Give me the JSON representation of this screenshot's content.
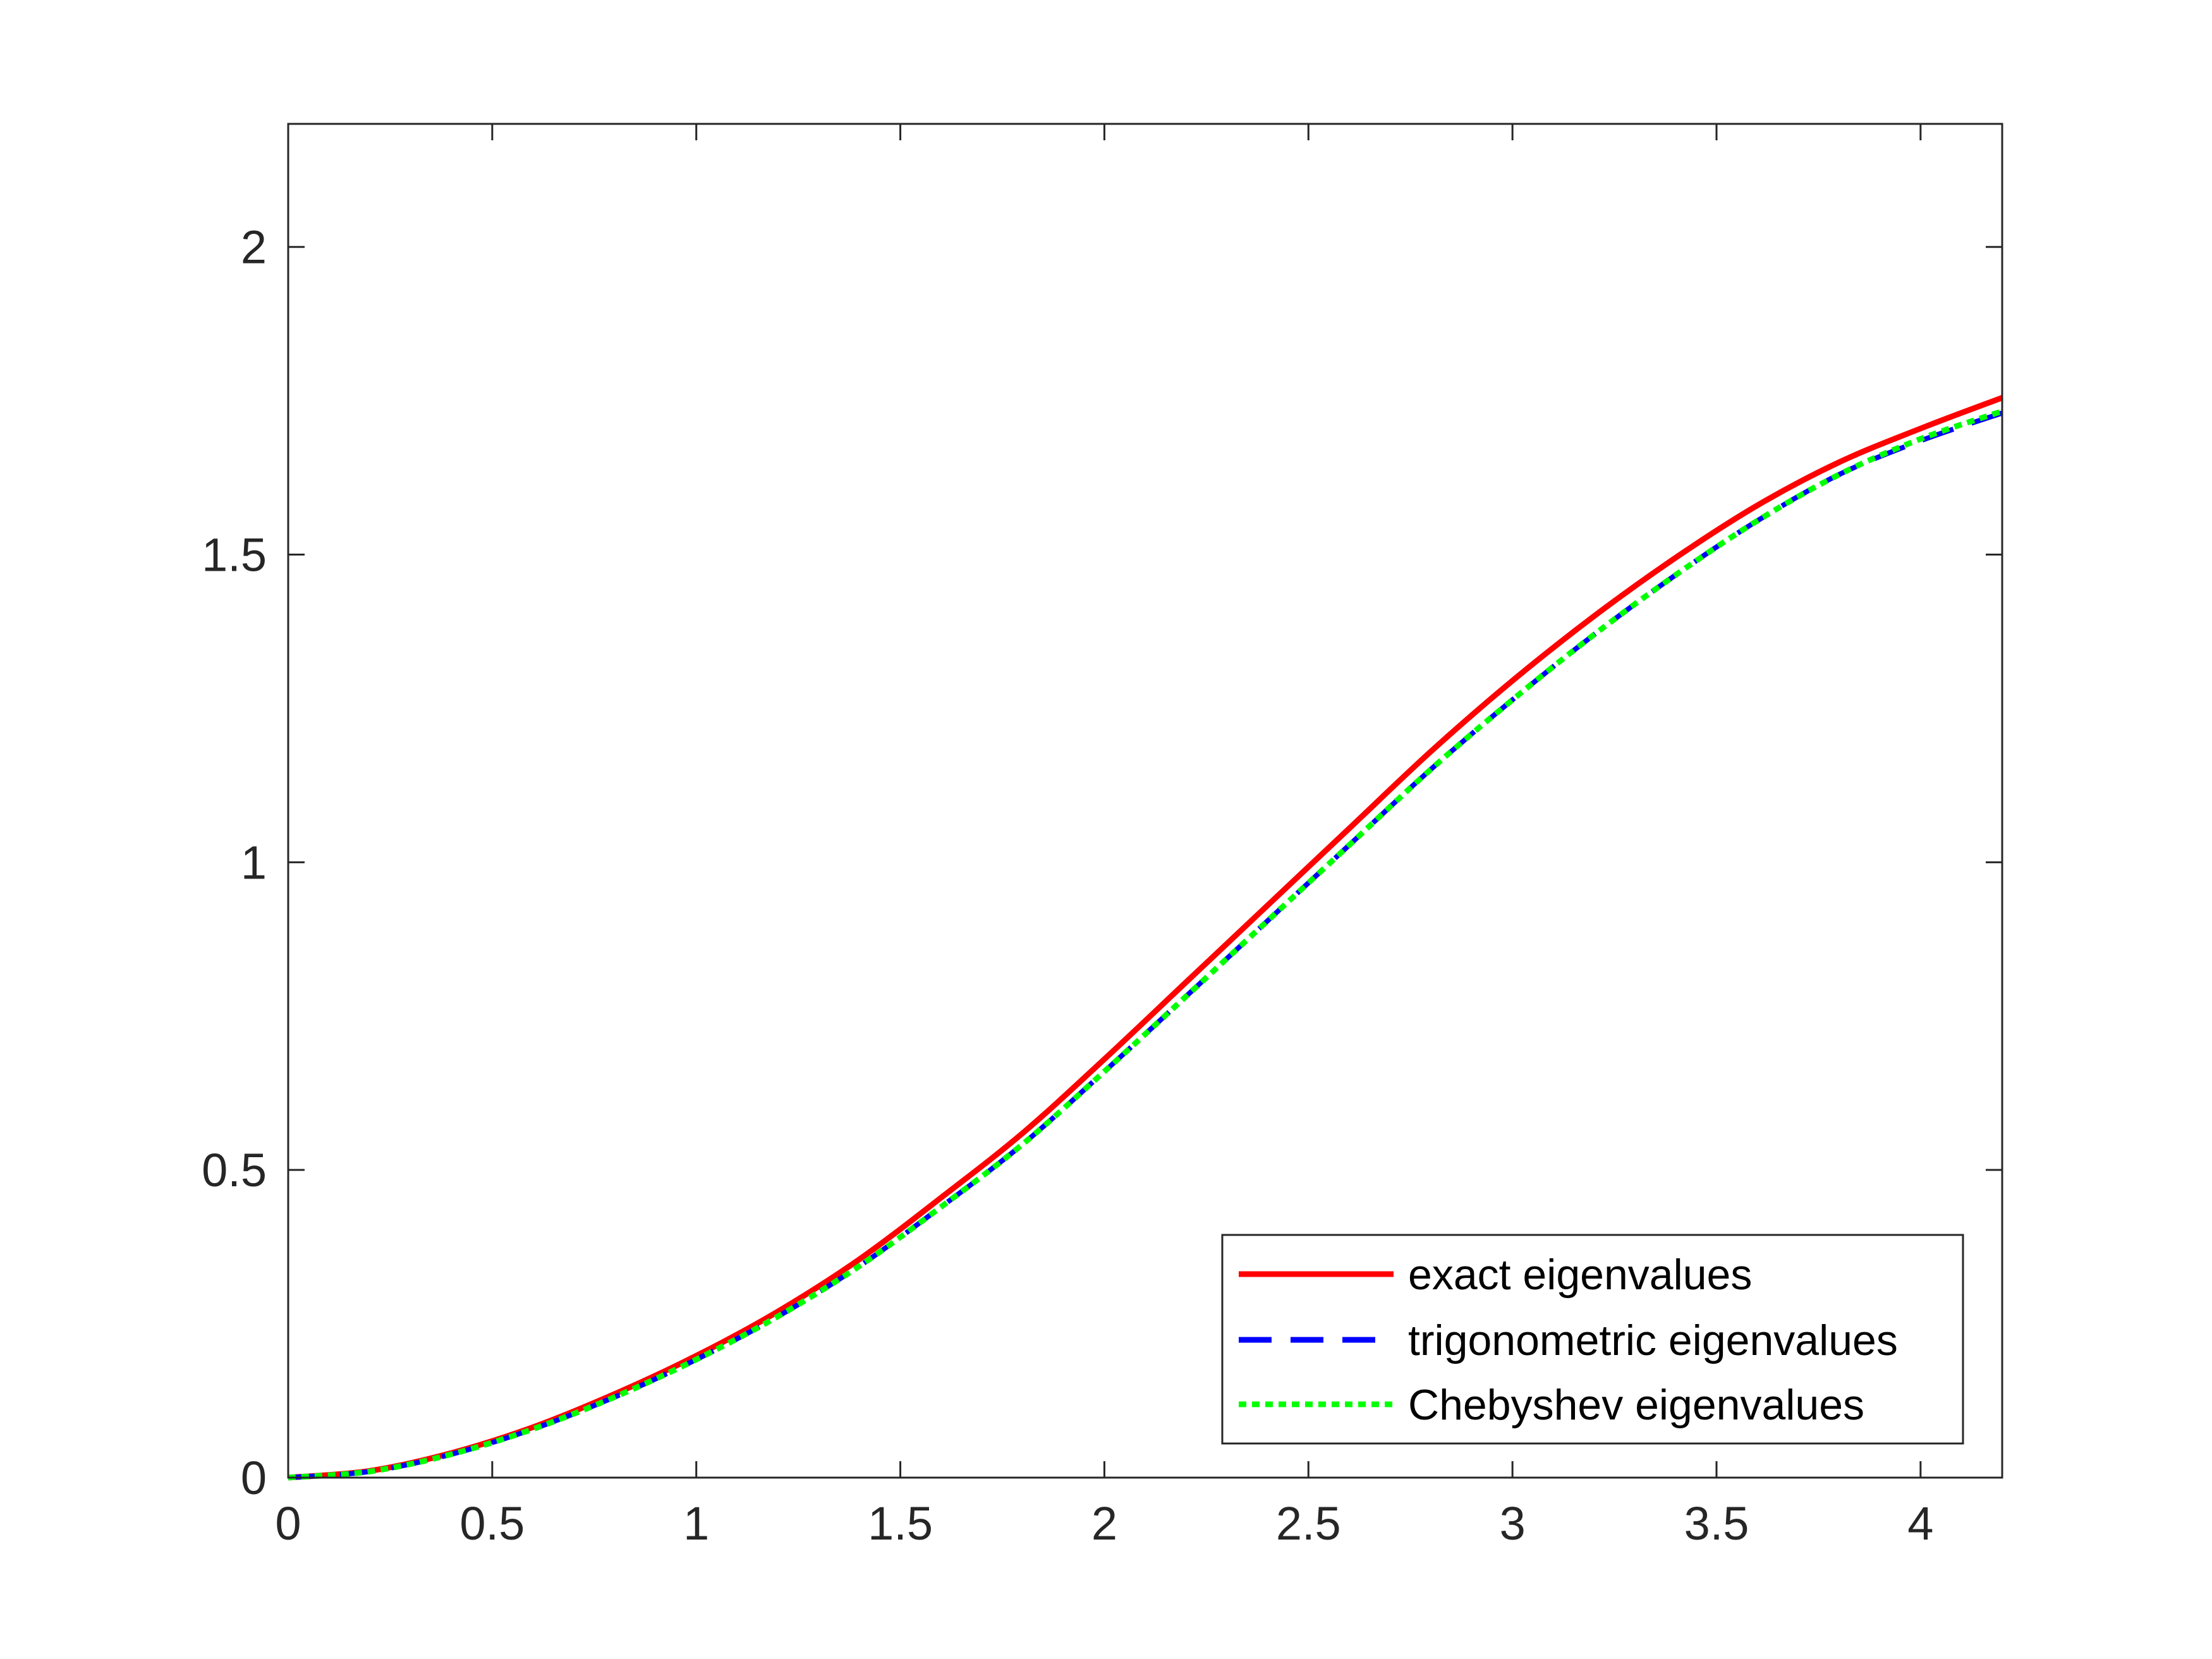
{
  "chart_data": {
    "type": "line",
    "title": "",
    "xlabel": "",
    "ylabel": "",
    "xlim": [
      0,
      4.2
    ],
    "ylim": [
      0,
      2.2
    ],
    "grid": false,
    "legend_position": "bottom-right",
    "xticks": [
      0,
      0.5,
      1,
      1.5,
      2,
      2.5,
      3,
      3.5,
      4
    ],
    "xtick_labels": [
      "0",
      "0.5",
      "1",
      "1.5",
      "2",
      "2.5",
      "3",
      "3.5",
      "4"
    ],
    "yticks": [
      0,
      0.5,
      1,
      1.5,
      2
    ],
    "ytick_labels": [
      "0",
      "0.5",
      "1",
      "1.5",
      "2"
    ],
    "series": [
      {
        "name": "exact eigenvalues",
        "color": "#ff0000",
        "style": "solid",
        "x": [
          0,
          0.2,
          0.4,
          0.6,
          0.8,
          1.0,
          1.2,
          1.4,
          1.6,
          1.8,
          2.0,
          2.2,
          2.4,
          2.6,
          2.8,
          3.0,
          3.2,
          3.4,
          3.6,
          3.8,
          4.0,
          4.2
        ],
        "y": [
          0,
          0.011,
          0.04,
          0.082,
          0.136,
          0.198,
          0.27,
          0.355,
          0.455,
          0.56,
          0.68,
          0.805,
          0.93,
          1.055,
          1.18,
          1.295,
          1.4,
          1.495,
          1.58,
          1.65,
          1.705,
          1.755
        ]
      },
      {
        "name": "trigonometric eigenvalues",
        "color": "#0000ff",
        "style": "dashed",
        "x": [
          0,
          0.2,
          0.4,
          0.6,
          0.8,
          1.0,
          1.2,
          1.4,
          1.6,
          1.8,
          2.0,
          2.2,
          2.4,
          2.6,
          2.8,
          3.0,
          3.2,
          3.4,
          3.6,
          3.8,
          4.0,
          4.2
        ],
        "y": [
          0,
          0.01,
          0.038,
          0.079,
          0.131,
          0.192,
          0.262,
          0.344,
          0.44,
          0.542,
          0.66,
          0.782,
          0.905,
          1.028,
          1.151,
          1.264,
          1.37,
          1.467,
          1.555,
          1.63,
          1.685,
          1.73
        ]
      },
      {
        "name": "Chebyshev eigenvalues",
        "color": "#00ff00",
        "style": "dotted",
        "x": [
          0,
          0.2,
          0.4,
          0.6,
          0.8,
          1.0,
          1.2,
          1.4,
          1.6,
          1.8,
          2.0,
          2.2,
          2.4,
          2.6,
          2.8,
          3.0,
          3.2,
          3.4,
          3.6,
          3.8,
          4.0,
          4.2
        ],
        "y": [
          0,
          0.01,
          0.038,
          0.079,
          0.131,
          0.192,
          0.262,
          0.344,
          0.44,
          0.542,
          0.66,
          0.782,
          0.905,
          1.028,
          1.151,
          1.264,
          1.37,
          1.467,
          1.555,
          1.63,
          1.688,
          1.733
        ]
      }
    ]
  }
}
